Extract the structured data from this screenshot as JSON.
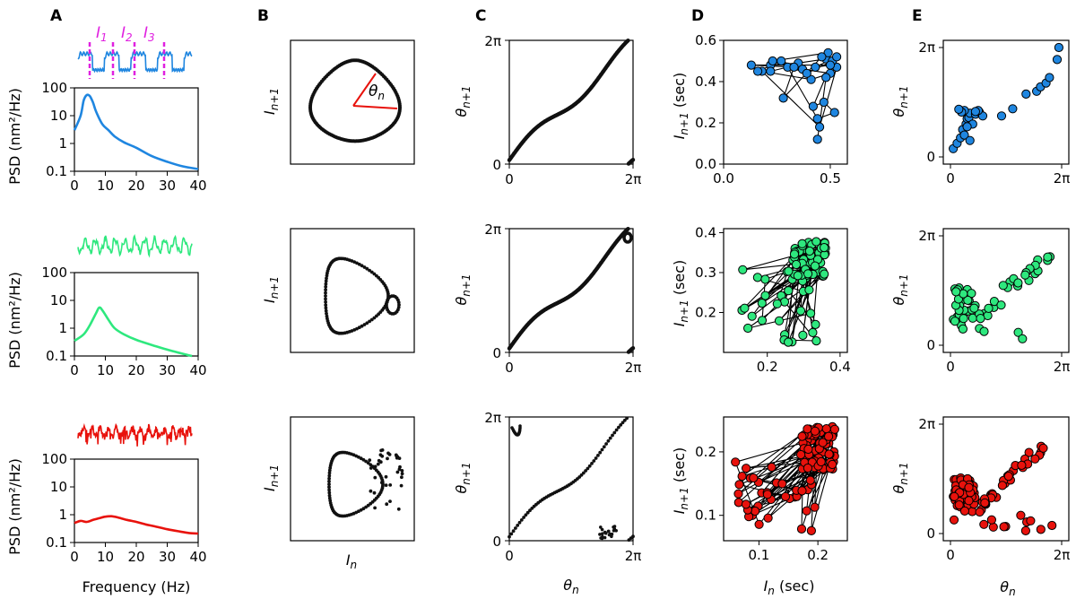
{
  "figure": {
    "panel_labels": [
      "A",
      "B",
      "C",
      "D",
      "E"
    ],
    "colors": {
      "blue": "#1f86e0",
      "green": "#2ee87e",
      "red": "#e8120c",
      "magenta": "#e020e0",
      "theta_arc": "#e8120c"
    },
    "interval_labels": {
      "i1": "I",
      "i1_sub": "1",
      "i2": "I",
      "i2_sub": "2",
      "i3": "I",
      "i3_sub": "3"
    },
    "theta_label": "θ",
    "theta_sub": "n",
    "axis_text": {
      "psd": "PSD (nm²/Hz)",
      "frequency": "Frequency (Hz)",
      "i_n1_main": "I",
      "i_n1_sub": "n+1",
      "i_n_main": "I",
      "i_n_sub": "n",
      "theta_n1_main": "θ",
      "theta_n1_sub": "n+1",
      "theta_n_main": "θ",
      "theta_n_sub": "n",
      "sec": " (sec)"
    }
  },
  "chart_data": [
    {
      "panel": "A",
      "type": "line",
      "row": 1,
      "series_color": "blue",
      "xlabel": "Frequency (Hz)",
      "ylabel": "PSD (nm²/Hz)",
      "yscale": "log",
      "xlim": [
        0,
        40
      ],
      "ylim": [
        0.1,
        100
      ],
      "xticks": [
        "0",
        "10",
        "20",
        "30",
        "40"
      ],
      "yticks": [
        "100",
        "10",
        "1",
        "0.1"
      ],
      "x": [
        0,
        2,
        3,
        4,
        5,
        6,
        7,
        9,
        11,
        13,
        16,
        20,
        25,
        30,
        35,
        40
      ],
      "y": [
        3,
        10,
        35,
        55,
        50,
        30,
        14,
        5,
        3,
        1.8,
        1.1,
        0.7,
        0.35,
        0.22,
        0.15,
        0.12
      ]
    },
    {
      "panel": "A",
      "type": "line",
      "row": 2,
      "series_color": "green",
      "xlabel": "Frequency (Hz)",
      "ylabel": "PSD (nm²/Hz)",
      "yscale": "log",
      "xlim": [
        0,
        40
      ],
      "ylim": [
        0.1,
        100
      ],
      "xticks": [
        "0",
        "10",
        "20",
        "30",
        "40"
      ],
      "yticks": [
        "100",
        "10",
        "1",
        "0.1"
      ],
      "x": [
        0,
        3,
        5,
        7,
        8,
        9,
        11,
        13,
        16,
        20,
        25,
        30,
        35,
        38
      ],
      "y": [
        0.35,
        0.6,
        1.3,
        3.5,
        5.5,
        4.5,
        2.0,
        1.0,
        0.6,
        0.38,
        0.25,
        0.17,
        0.12,
        0.1
      ]
    },
    {
      "panel": "A",
      "type": "line",
      "row": 3,
      "series_color": "red",
      "xlabel": "Frequency (Hz)",
      "ylabel": "PSD (nm²/Hz)",
      "yscale": "log",
      "xlim": [
        0,
        40
      ],
      "ylim": [
        0.1,
        100
      ],
      "xticks": [
        "0",
        "10",
        "20",
        "30",
        "40"
      ],
      "yticks": [
        "100",
        "10",
        "1",
        "0.1"
      ],
      "x": [
        0,
        2,
        4,
        6,
        8,
        10,
        12,
        14,
        17,
        20,
        23,
        26,
        30,
        34,
        37,
        40
      ],
      "y": [
        0.5,
        0.6,
        0.55,
        0.65,
        0.75,
        0.85,
        0.88,
        0.8,
        0.65,
        0.55,
        0.45,
        0.38,
        0.3,
        0.25,
        0.22,
        0.21
      ]
    },
    {
      "panel": "D",
      "type": "scatter",
      "row": 1,
      "series_color": "blue",
      "xlabel": "I_n (sec)",
      "ylabel": "I_n+1 (sec)",
      "xlim": [
        0.0,
        0.58
      ],
      "ylim": [
        0.0,
        0.6
      ],
      "xticks": [
        "0.0",
        "0.5"
      ],
      "yticks": [
        "0.6",
        "0.4",
        "0.2",
        "0.0"
      ],
      "x": [
        0.22,
        0.35,
        0.48,
        0.53,
        0.45,
        0.18,
        0.41,
        0.5,
        0.37,
        0.27,
        0.16,
        0.22,
        0.3,
        0.44,
        0.52,
        0.47,
        0.42,
        0.51,
        0.39,
        0.23,
        0.49,
        0.46,
        0.28,
        0.33,
        0.13,
        0.5,
        0.43,
        0.53,
        0.48,
        0.44
      ],
      "y": [
        0.48,
        0.49,
        0.51,
        0.47,
        0.18,
        0.45,
        0.41,
        0.44,
        0.46,
        0.5,
        0.45,
        0.45,
        0.47,
        0.22,
        0.25,
        0.3,
        0.28,
        0.5,
        0.44,
        0.5,
        0.54,
        0.52,
        0.32,
        0.47,
        0.48,
        0.48,
        0.47,
        0.52,
        0.42,
        0.12
      ]
    },
    {
      "panel": "E",
      "type": "scatter",
      "row": 1,
      "series_color": "blue",
      "xlabel": "θn",
      "ylabel": "θn+1",
      "xlim_rad": [
        0,
        6.2832
      ],
      "ylim_rad": [
        0,
        6.2832
      ],
      "xticks": [
        "0",
        "2π"
      ],
      "yticks": [
        "2π",
        "0"
      ],
      "x": [
        0.05,
        0.12,
        0.18,
        0.22,
        0.28,
        0.3,
        0.33,
        0.35,
        0.25,
        0.2,
        0.15,
        0.45,
        0.52,
        0.58,
        0.5,
        0.4,
        0.3,
        0.25,
        0.35,
        0.45,
        0.92,
        1.12,
        1.36,
        1.55,
        1.62,
        1.72,
        1.78,
        1.92,
        1.95
      ],
      "y": [
        0.15,
        0.25,
        0.35,
        0.5,
        0.6,
        0.7,
        0.72,
        0.8,
        0.85,
        0.82,
        0.87,
        0.78,
        0.82,
        0.75,
        0.85,
        0.6,
        0.55,
        0.4,
        0.3,
        0.83,
        0.75,
        0.88,
        1.15,
        1.2,
        1.28,
        1.35,
        1.45,
        1.78,
        2.0
      ]
    }
  ]
}
